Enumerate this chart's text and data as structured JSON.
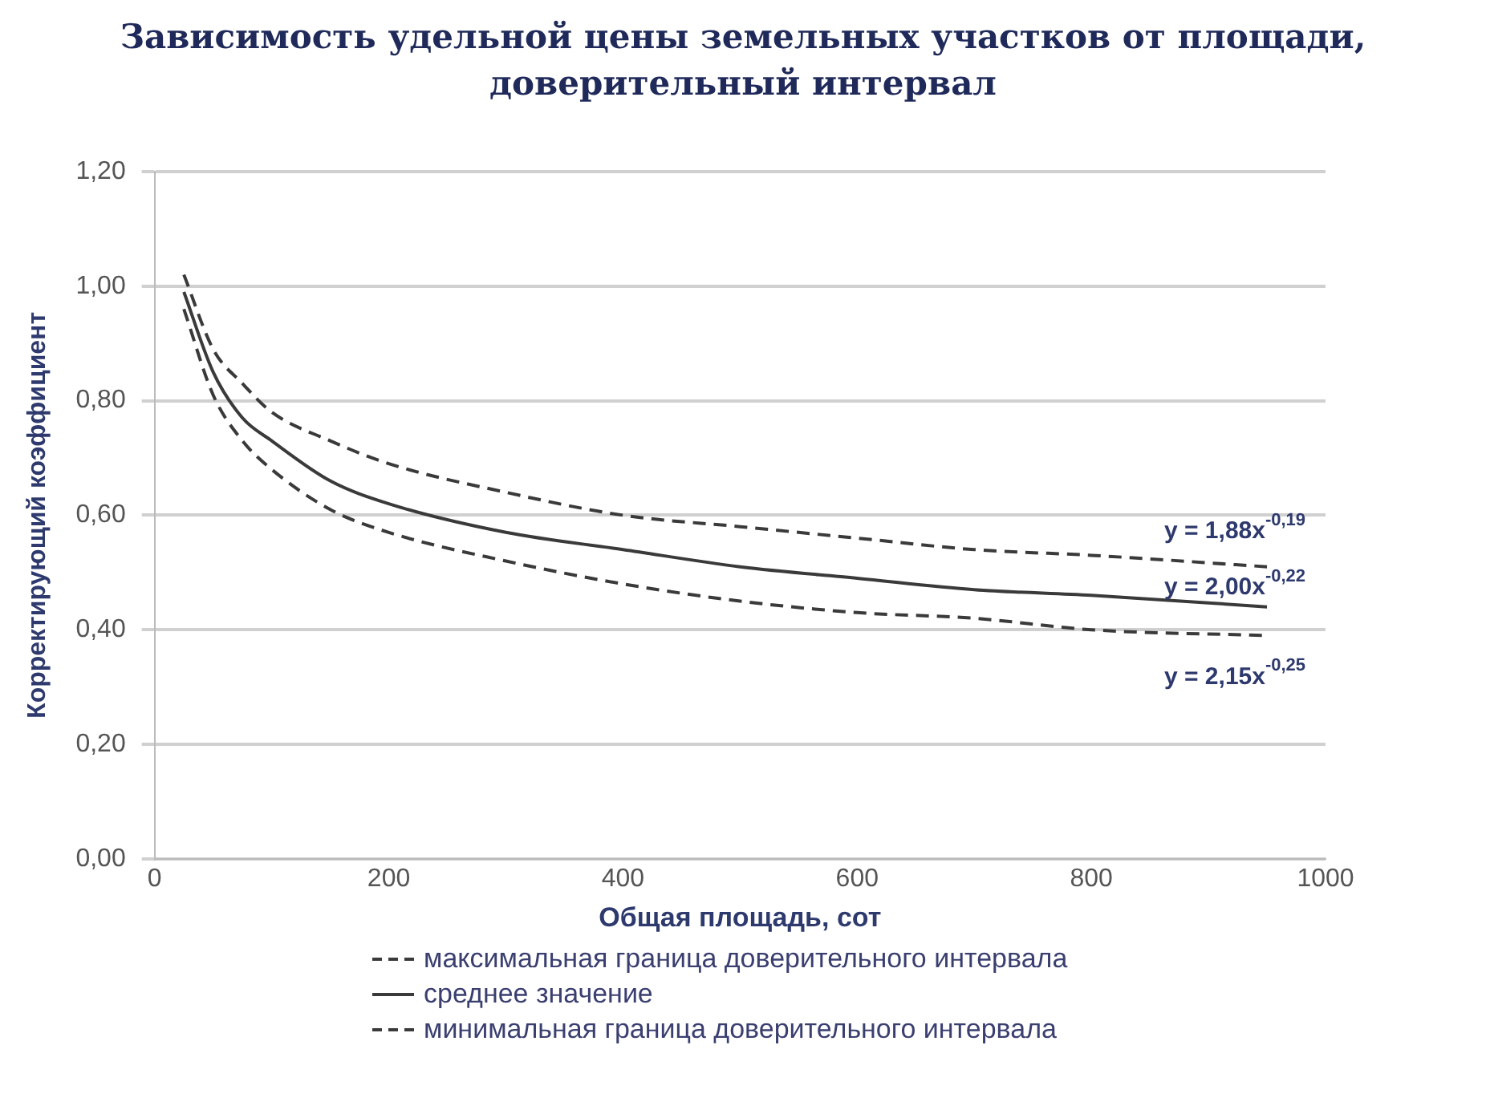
{
  "chart_data": {
    "type": "line",
    "title": "Зависимость удельной цены земельных участков от площади, доверительный интервал",
    "xlabel": "Общая площадь, сот",
    "ylabel": "Корректирующий коэффициент",
    "x": [
      25,
      50,
      75,
      100,
      150,
      200,
      300,
      400,
      500,
      600,
      700,
      800,
      950
    ],
    "series": [
      {
        "name": "максимальная граница доверительного интервала",
        "color": "#3a3a3a",
        "line_style": "dashed",
        "values": [
          1.02,
          0.89,
          0.83,
          0.78,
          0.73,
          0.69,
          0.64,
          0.6,
          0.58,
          0.56,
          0.54,
          0.53,
          0.51
        ]
      },
      {
        "name": "среднее значение",
        "color": "#3a3a3a",
        "line_style": "solid",
        "values": [
          0.99,
          0.85,
          0.77,
          0.73,
          0.66,
          0.62,
          0.57,
          0.54,
          0.51,
          0.49,
          0.47,
          0.46,
          0.44
        ]
      },
      {
        "name": "минимальная граница доверительного интервала",
        "color": "#3a3a3a",
        "line_style": "dashed",
        "values": [
          0.96,
          0.81,
          0.73,
          0.68,
          0.61,
          0.57,
          0.52,
          0.48,
          0.45,
          0.43,
          0.42,
          0.4,
          0.39
        ]
      }
    ],
    "xlim": [
      0,
      1000
    ],
    "xticks": [
      0,
      200,
      400,
      600,
      800,
      1000
    ],
    "ylim": [
      0,
      1.2
    ],
    "yticks": [
      {
        "value": 0,
        "label": "0,00"
      },
      {
        "value": 0.2,
        "label": "0,20"
      },
      {
        "value": 0.4,
        "label": "0,40"
      },
      {
        "value": 0.6,
        "label": "0,60"
      },
      {
        "value": 0.8,
        "label": "0,80"
      },
      {
        "value": 1,
        "label": "1,00"
      },
      {
        "value": 1.2,
        "label": "1,20"
      }
    ],
    "annotations": [
      "y = 1,88x$^{-0,19}$",
      "y = 2,00x$^{-0,22}$",
      "y = 2,15x$^{-0,25}$"
    ],
    "grid": "y",
    "legend": "bottom",
    "marker": "none"
  }
}
